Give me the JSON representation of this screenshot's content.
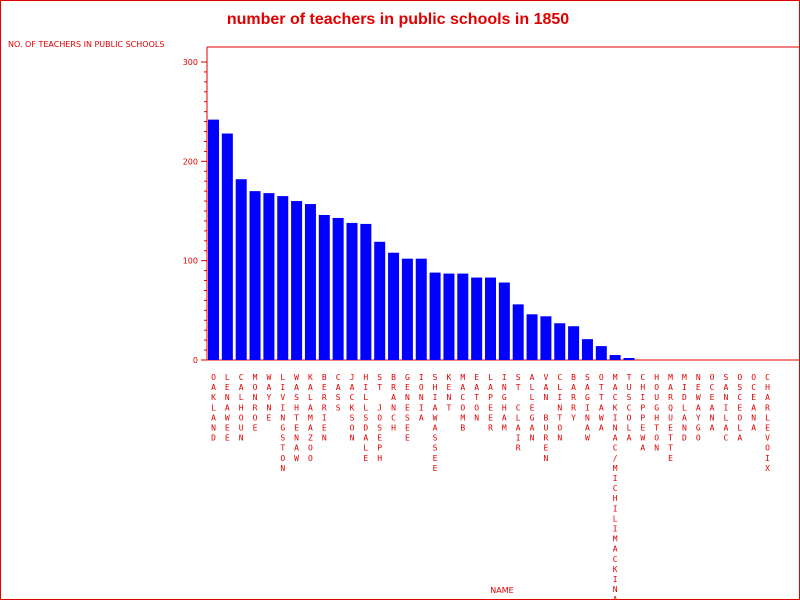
{
  "chart_data": {
    "type": "bar",
    "title": "number of teachers in public schools in 1850",
    "ylabel": "NO. OF TEACHERS IN PUBLIC SCHOOLS",
    "xlabel": "NAME",
    "ylim": [
      0,
      300
    ],
    "yticks": [
      0,
      100,
      200,
      300
    ],
    "grid": false,
    "legend": "none",
    "categories": [
      "OAKLAND",
      "LENAWEE",
      "CALHOUN",
      "MONROE",
      "WAYNE",
      "LIVINGSTON",
      "WASHTENAW",
      "KALAMAZOO",
      "BERRIEN",
      "CASS",
      "JACKSON",
      "HILLSDALE",
      "ST JOSEPH",
      "BRANCH",
      "GENESEE",
      "IONIA",
      "SHIAWASSEE",
      "KENT",
      "MACOMB",
      "EATON",
      "LAPEER",
      "INGHAM",
      "ST CLAIR",
      "ALLEGAN",
      "VAN BUREN",
      "CLINTON",
      "BARRY",
      "SAGINAW",
      "OTTAWA",
      "MACKINAC/MICHILIMACKINAC",
      "TUSCOLA",
      "CHIPPEWA",
      "HOUGHTON",
      "MARQUETTE",
      "MIDLAND",
      "NEWAYGO",
      "OCEANA",
      "SANILAC",
      "OSCEOLA",
      "OCEANA",
      "CHARLEVOIX"
    ],
    "values": [
      242,
      228,
      182,
      170,
      168,
      165,
      160,
      157,
      146,
      143,
      138,
      137,
      119,
      108,
      102,
      102,
      88,
      87,
      87,
      83,
      83,
      78,
      56,
      46,
      44,
      37,
      34,
      21,
      14,
      5,
      2,
      0,
      0,
      0,
      0,
      0,
      0,
      0,
      0,
      0,
      0
    ],
    "bar_color": "#0000ff",
    "text_color": "#e00000",
    "axis_color": "#e00000"
  }
}
